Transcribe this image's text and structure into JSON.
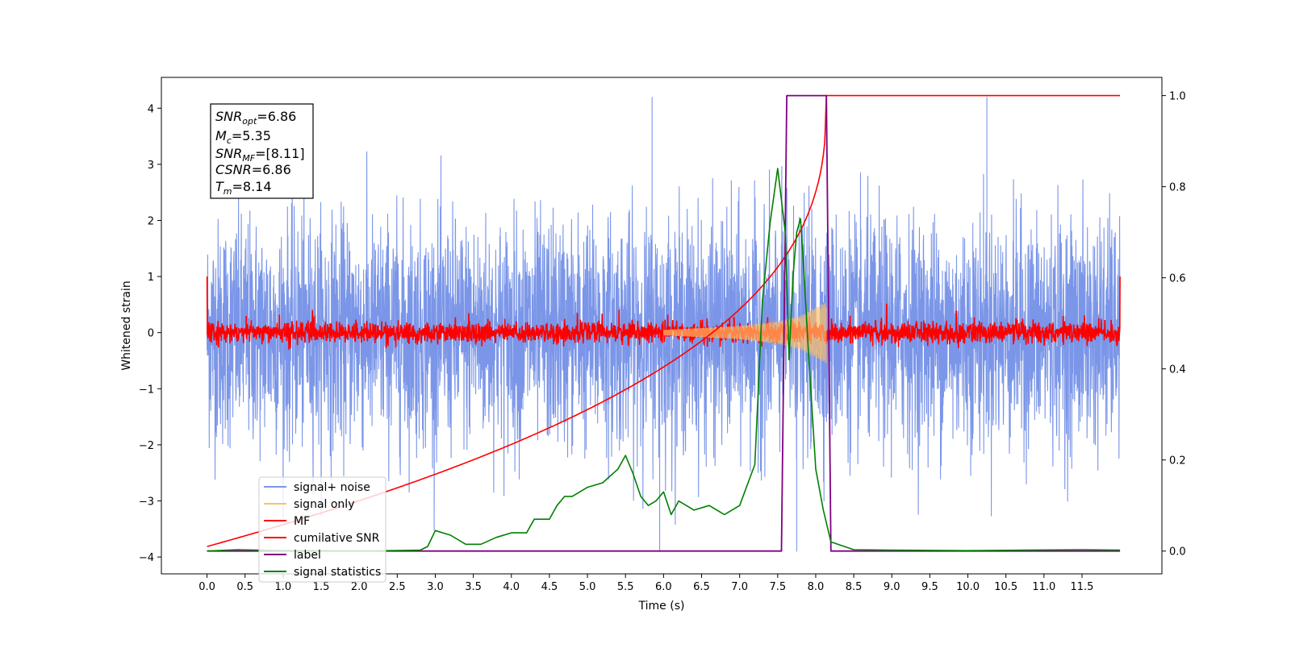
{
  "chart_data": {
    "type": "line",
    "xlabel": "Time (s)",
    "ylabel": "Whitened strain",
    "ylabel_right": "",
    "xlim": [
      -0.6,
      12.55
    ],
    "ylim": [
      -4.3,
      4.55
    ],
    "ylim_right": [
      -0.05,
      1.04
    ],
    "x_ticks": [
      "0.0",
      "0.5",
      "1.0",
      "1.5",
      "2.0",
      "2.5",
      "3.0",
      "3.5",
      "4.0",
      "4.5",
      "5.0",
      "5.5",
      "6.0",
      "6.5",
      "7.0",
      "7.5",
      "8.0",
      "8.5",
      "9.0",
      "9.5",
      "10.0",
      "10.5",
      "11.0",
      "11.5"
    ],
    "y_ticks": [
      "4",
      "3",
      "2",
      "1",
      "0",
      "−1",
      "−2",
      "−3",
      "−4"
    ],
    "y_ticks_right": [
      "1.0",
      "0.8",
      "0.6",
      "0.4",
      "0.2",
      "0.0"
    ],
    "annotation": {
      "lines": [
        {
          "name": "SNR",
          "sub": "opt",
          "value": "=6.86"
        },
        {
          "name": "M",
          "sub": "c",
          "value": "=5.35"
        },
        {
          "name": "SNR",
          "sub": "MF",
          "value": "=[8.11]"
        },
        {
          "name": "CSNR",
          "sub": "",
          "value": "=6.86"
        },
        {
          "name": "T",
          "sub": "m",
          "value": "=8.14"
        }
      ]
    },
    "series": [
      {
        "name": "signal+ noise",
        "color": "#7b96e8",
        "axis": "left",
        "description_points": {
          "x": [
            0,
            12
          ],
          "mean": 0,
          "typical_range": [
            -2.5,
            2.5
          ],
          "peaks": [
            [
              5.85,
              4.2
            ],
            [
              10.25,
              4.2
            ],
            [
              5.95,
              -3.9
            ],
            [
              7.75,
              -3.9
            ]
          ]
        }
      },
      {
        "name": "signal only",
        "color": "#ffbf66",
        "axis": "left",
        "points": [
          [
            0,
            0
          ],
          [
            6.0,
            0.05
          ],
          [
            7.0,
            0.12
          ],
          [
            7.5,
            0.2
          ],
          [
            7.8,
            0.3
          ],
          [
            8.0,
            0.45
          ],
          [
            8.14,
            0.55
          ],
          [
            8.15,
            0
          ]
        ]
      },
      {
        "name": "MF",
        "color": "#ff0000",
        "axis": "left",
        "typical_range": [
          -0.2,
          0.3
        ]
      },
      {
        "name": "cumilative SNR",
        "color": "#ff0000",
        "axis": "right",
        "points": [
          [
            0,
            0.01
          ],
          [
            0.5,
            0.07
          ],
          [
            1.0,
            0.1
          ],
          [
            2.0,
            0.15
          ],
          [
            3.0,
            0.21
          ],
          [
            4.0,
            0.27
          ],
          [
            5.0,
            0.34
          ],
          [
            6.0,
            0.42
          ],
          [
            6.5,
            0.47
          ],
          [
            7.0,
            0.54
          ],
          [
            7.5,
            0.63
          ],
          [
            7.8,
            0.72
          ],
          [
            8.0,
            0.82
          ],
          [
            8.14,
            1.0
          ],
          [
            12.0,
            1.0
          ]
        ]
      },
      {
        "name": "label",
        "color": "#800080",
        "axis": "right",
        "points": [
          [
            0,
            0.0
          ],
          [
            7.55,
            0.0
          ],
          [
            7.62,
            1.0
          ],
          [
            8.14,
            1.0
          ],
          [
            8.2,
            0.0
          ],
          [
            12.0,
            0.0
          ]
        ]
      },
      {
        "name": "signal statistics",
        "color": "#008000",
        "axis": "right",
        "points": [
          [
            0,
            0.0
          ],
          [
            0.4,
            0.003
          ],
          [
            1.0,
            0.001
          ],
          [
            2.0,
            0.0
          ],
          [
            2.8,
            0.002
          ],
          [
            2.9,
            0.01
          ],
          [
            3.0,
            0.045
          ],
          [
            3.2,
            0.035
          ],
          [
            3.4,
            0.015
          ],
          [
            3.6,
            0.015
          ],
          [
            3.8,
            0.03
          ],
          [
            4.0,
            0.04
          ],
          [
            4.2,
            0.04
          ],
          [
            4.3,
            0.07
          ],
          [
            4.5,
            0.07
          ],
          [
            4.6,
            0.1
          ],
          [
            4.7,
            0.12
          ],
          [
            4.8,
            0.12
          ],
          [
            5.0,
            0.14
          ],
          [
            5.2,
            0.15
          ],
          [
            5.4,
            0.18
          ],
          [
            5.5,
            0.21
          ],
          [
            5.6,
            0.17
          ],
          [
            5.7,
            0.12
          ],
          [
            5.8,
            0.1
          ],
          [
            5.9,
            0.11
          ],
          [
            6.0,
            0.13
          ],
          [
            6.1,
            0.08
          ],
          [
            6.2,
            0.11
          ],
          [
            6.4,
            0.09
          ],
          [
            6.6,
            0.1
          ],
          [
            6.8,
            0.08
          ],
          [
            7.0,
            0.1
          ],
          [
            7.2,
            0.19
          ],
          [
            7.3,
            0.55
          ],
          [
            7.4,
            0.72
          ],
          [
            7.5,
            0.84
          ],
          [
            7.6,
            0.7
          ],
          [
            7.65,
            0.42
          ],
          [
            7.7,
            0.6
          ],
          [
            7.75,
            0.7
          ],
          [
            7.8,
            0.73
          ],
          [
            7.85,
            0.6
          ],
          [
            7.9,
            0.45
          ],
          [
            8.0,
            0.18
          ],
          [
            8.1,
            0.09
          ],
          [
            8.2,
            0.02
          ],
          [
            8.5,
            0.003
          ],
          [
            9.0,
            0.002
          ],
          [
            10.0,
            0.001
          ],
          [
            11.5,
            0.003
          ],
          [
            12.0,
            0.002
          ]
        ]
      }
    ],
    "legend_position": "lower-left",
    "grid": false
  }
}
